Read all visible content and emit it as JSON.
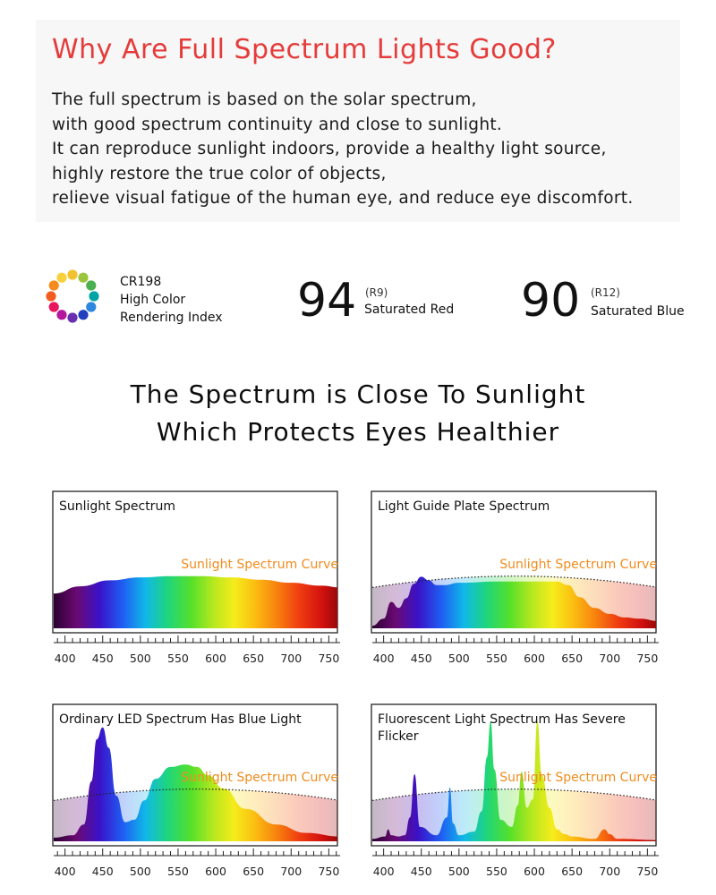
{
  "intro": {
    "title": "Why Are Full Spectrum Lights Good?",
    "lines": [
      "The full spectrum is based on the solar spectrum,",
      "with good spectrum continuity and close to sunlight.",
      "It can reproduce sunlight indoors, provide a healthy light source,",
      "highly restore the true color of objects,",
      "relieve visual fatigue of the human eye, and reduce eye discomfort."
    ]
  },
  "stats": {
    "cri_line1": "CR198",
    "cri_line2": "High Color",
    "cri_line3": "Rendering Index",
    "r9_value": "94",
    "r9_code": "(R9)",
    "r9_label": "Saturated Red",
    "r12_value": "90",
    "r12_code": "(R12)",
    "r12_label": "Saturated Blue",
    "wheel_colors": [
      "#f2c12e",
      "#9bc53d",
      "#4caf50",
      "#00a3a3",
      "#2e86de",
      "#1f3fbf",
      "#6a2fb0",
      "#b5179e",
      "#e8175d",
      "#f25c1e",
      "#f58b1e",
      "#f7d13b"
    ]
  },
  "headline": {
    "line1": "The Spectrum is Close To Sunlight",
    "line2": "Which Protects Eyes Healthier"
  },
  "chart_data": [
    {
      "type": "area",
      "title": "Sunlight Spectrum",
      "curve_label": "Sunlight Spectrum Curve",
      "x_ticks": [
        400,
        450,
        500,
        550,
        600,
        650,
        700,
        750
      ],
      "xlim": [
        385,
        765
      ],
      "ylim": [
        0,
        1
      ],
      "x": [
        385,
        420,
        460,
        500,
        540,
        580,
        620,
        660,
        700,
        740,
        765
      ],
      "y": [
        0.29,
        0.35,
        0.4,
        0.425,
        0.435,
        0.435,
        0.425,
        0.405,
        0.38,
        0.355,
        0.34
      ],
      "reference_curve": false
    },
    {
      "type": "area",
      "title": "Light Guide Plate Spectrum",
      "curve_label": "Sunlight Spectrum Curve",
      "x_ticks": [
        400,
        450,
        500,
        550,
        600,
        650,
        700,
        750
      ],
      "xlim": [
        385,
        765
      ],
      "ylim": [
        0,
        1
      ],
      "x": [
        385,
        400,
        410,
        420,
        430,
        440,
        450,
        460,
        470,
        480,
        500,
        550,
        600,
        630,
        645,
        660,
        680,
        700,
        720,
        740,
        765
      ],
      "y": [
        0.02,
        0.08,
        0.22,
        0.17,
        0.25,
        0.37,
        0.43,
        0.4,
        0.36,
        0.36,
        0.38,
        0.39,
        0.39,
        0.39,
        0.36,
        0.26,
        0.17,
        0.12,
        0.09,
        0.08,
        0.06
      ],
      "reference_curve": true
    },
    {
      "type": "area",
      "title": "Ordinary LED Spectrum Has Blue Light",
      "curve_label": "Sunlight Spectrum Curve",
      "x_ticks": [
        400,
        450,
        500,
        550,
        600,
        650,
        700,
        750
      ],
      "xlim": [
        385,
        765
      ],
      "ylim": [
        0,
        1
      ],
      "x": [
        385,
        410,
        425,
        435,
        442,
        450,
        458,
        468,
        480,
        492,
        505,
        520,
        540,
        560,
        575,
        590,
        610,
        640,
        680,
        720,
        765
      ],
      "y": [
        0.03,
        0.05,
        0.14,
        0.5,
        0.85,
        0.95,
        0.78,
        0.38,
        0.16,
        0.18,
        0.34,
        0.52,
        0.62,
        0.64,
        0.62,
        0.55,
        0.44,
        0.27,
        0.14,
        0.07,
        0.04
      ],
      "reference_curve": true
    },
    {
      "type": "area",
      "title": "Fluorescent Light Spectrum Has Severe Flicker",
      "curve_label": "Sunlight Spectrum Curve",
      "x_ticks": [
        400,
        450,
        500,
        550,
        600,
        650,
        700,
        750
      ],
      "xlim": [
        385,
        765
      ],
      "ylim": [
        0,
        1
      ],
      "x": [
        385,
        402,
        406,
        410,
        420,
        428,
        435,
        441,
        448,
        470,
        484,
        488,
        492,
        500,
        520,
        530,
        537,
        542,
        547,
        555,
        570,
        578,
        583,
        590,
        598,
        604,
        610,
        620,
        630,
        640,
        650,
        680,
        693,
        700,
        710,
        765
      ],
      "y": [
        0.02,
        0.04,
        0.1,
        0.05,
        0.04,
        0.05,
        0.2,
        0.56,
        0.12,
        0.05,
        0.2,
        0.45,
        0.15,
        0.05,
        0.08,
        0.25,
        0.7,
        1.0,
        0.6,
        0.18,
        0.12,
        0.3,
        0.58,
        0.28,
        0.35,
        1.0,
        0.55,
        0.28,
        0.1,
        0.06,
        0.04,
        0.02,
        0.1,
        0.06,
        0.02,
        0.01
      ],
      "reference_curve": true
    }
  ]
}
